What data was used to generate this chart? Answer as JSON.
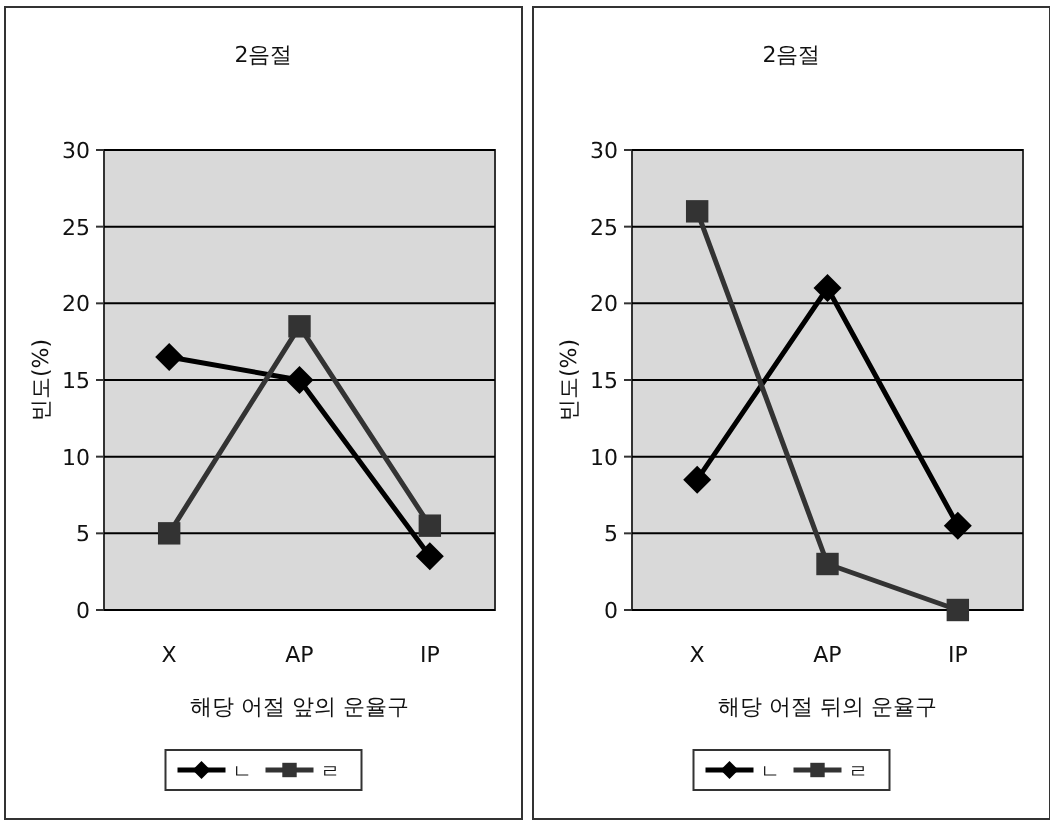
{
  "chart_data": [
    {
      "type": "line",
      "title": "2음절",
      "xlabel": "해당 어절 앞의 운율구",
      "ylabel": "빈도(%)",
      "categories": [
        "X",
        "AP",
        "IP"
      ],
      "ylim": [
        0,
        30
      ],
      "yticks": [
        0,
        5,
        10,
        15,
        20,
        25,
        30
      ],
      "grid": "y",
      "legend": "bottom",
      "series": [
        {
          "name": "ㄴ",
          "color": "#000000",
          "marker": "diamond",
          "values": [
            16.5,
            15,
            3.5
          ]
        },
        {
          "name": "ㄹ",
          "color": "#333333",
          "marker": "square",
          "values": [
            5,
            18.5,
            5.5
          ]
        }
      ]
    },
    {
      "type": "line",
      "title": "2음절",
      "xlabel": "해당 어절 뒤의 운율구",
      "ylabel": "빈도(%)",
      "categories": [
        "X",
        "AP",
        "IP"
      ],
      "ylim": [
        0,
        30
      ],
      "yticks": [
        0,
        5,
        10,
        15,
        20,
        25,
        30
      ],
      "grid": "y",
      "legend": "bottom",
      "series": [
        {
          "name": "ㄴ",
          "color": "#000000",
          "marker": "diamond",
          "values": [
            8.5,
            21,
            5.5
          ]
        },
        {
          "name": "ㄹ",
          "color": "#333333",
          "marker": "square",
          "values": [
            26,
            3,
            0
          ]
        }
      ]
    }
  ]
}
